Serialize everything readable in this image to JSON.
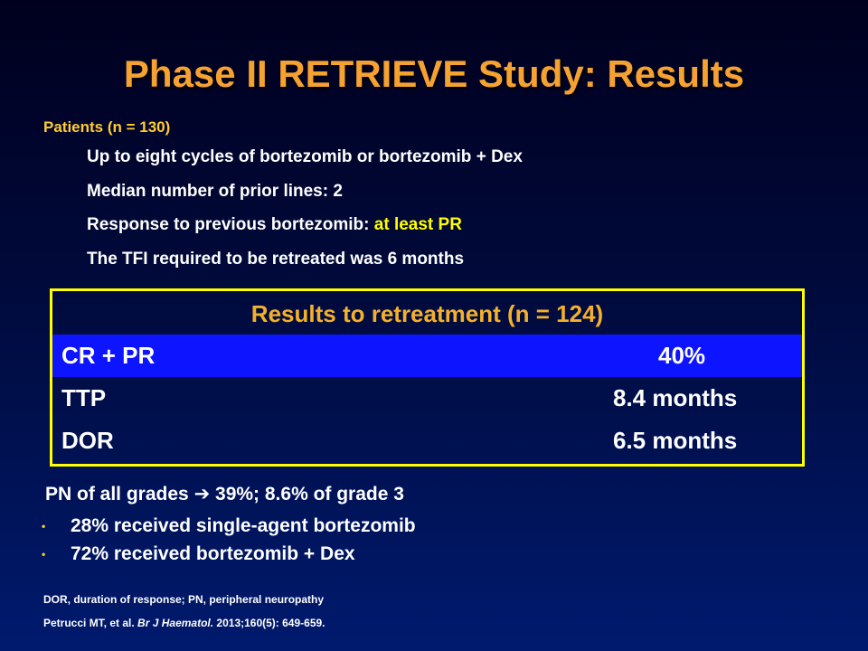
{
  "title": "Phase II RETRIEVE Study: Results",
  "patients": {
    "heading": "Patients (n = 130)",
    "items": [
      {
        "text": "Up to eight cycles of bortezomib or bortezomib + Dex"
      },
      {
        "text": "Median number of prior lines: 2"
      },
      {
        "text": "Response to previous bortezomib: ",
        "highlight": "at least PR"
      },
      {
        "text": "The TFI required to be retreated was 6 months"
      }
    ]
  },
  "table": {
    "heading": "Results to retreatment (n = 124)",
    "rows": [
      {
        "label": "CR + PR",
        "value": "40%"
      },
      {
        "label": "TTP",
        "value": "8.4 months"
      },
      {
        "label": "DOR",
        "value": "6.5 months"
      }
    ]
  },
  "pn": {
    "prefix": "PN of all grades",
    "arrow": "➔",
    "suffix": "39%; 8.6% of grade 3"
  },
  "bullets": [
    "28% received single-agent bortezomib",
    "72% received bortezomib + Dex"
  ],
  "footnote": "DOR, duration of response; PN, peripheral neuropathy",
  "citation": {
    "authors": "Petrucci MT, et al.",
    "journal": "Br J Haematol.",
    "details": "2013;160(5): 649-659."
  },
  "colors": {
    "title": "#f5a231",
    "heading": "#ffcc33",
    "highlight": "#ffff00",
    "table_border": "#ffff00",
    "table_highlight_row": "#0d14ff"
  }
}
